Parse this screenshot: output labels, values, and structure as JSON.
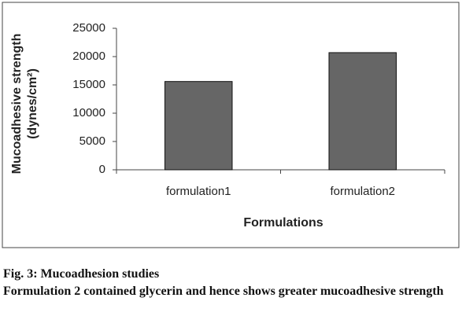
{
  "chart_data": {
    "type": "bar",
    "y_label": [
      "Mucoadhesive strength",
      "(dynes/cm²)"
    ],
    "x_label": "Formulations",
    "categories": [
      "formulation1",
      "formulation2"
    ],
    "values": [
      15600,
      20700
    ],
    "color": "#666666",
    "ylim": [
      0,
      25000
    ],
    "yticks": [
      0,
      5000,
      10000,
      15000,
      20000,
      25000
    ],
    "grid": false
  },
  "caption": {
    "title": "Fig. 3: Mucoadhesion studies",
    "text": "Formulation 2 contained glycerin and hence shows greater mucoadhesive strength"
  }
}
